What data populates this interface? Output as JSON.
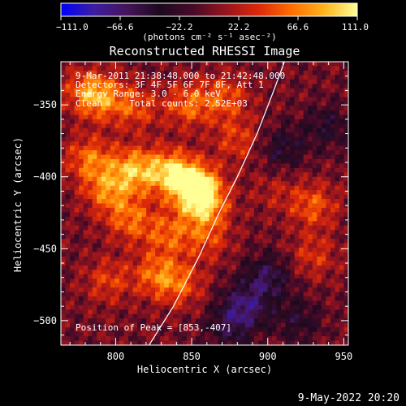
{
  "chart_data": {
    "type": "heatmap",
    "title": "Reconstructed RHESSI Image",
    "xlabel": "Heliocentric X (arcsec)",
    "ylabel": "Heliocentric Y (arcsec)",
    "xlim": [
      764,
      953
    ],
    "ylim": [
      -517,
      -320
    ],
    "xticks": [
      800,
      850,
      900,
      950
    ],
    "yticks": [
      -350,
      -400,
      -450,
      -500
    ],
    "colorbar": {
      "min": -111.0,
      "max": 111.0,
      "tick_labels": [
        "−111.0",
        "−66.6",
        "−22.2",
        "22.2",
        "66.6",
        "111.0"
      ],
      "tick_values": [
        -111.0,
        -66.6,
        -22.2,
        22.2,
        66.6,
        111.0
      ],
      "unit_label": "(photons cm⁻² s⁻¹ asec⁻²)",
      "colormap": [
        "#0000ff",
        "#3c1ea0",
        "#46145a",
        "#1c0a1e",
        "#460a28",
        "#96141e",
        "#dc280a",
        "#ff6e00",
        "#ffb41e",
        "#ffff96"
      ]
    },
    "annotations": [
      "9-Mar-2011 21:38:48.000 to 21:42:48.000",
      "Detectors: 3F 4F 5F 6F 7F 8F, Att 1",
      "Energy Range: 3.0 - 6.0 keV",
      "Clean     Total counts: 2.52E+03"
    ],
    "peak": {
      "label": "Position of Peak = [853,-407]",
      "x": 853,
      "y": -407,
      "value": 111.0
    },
    "sources": [
      {
        "x": 853,
        "y": -407,
        "value": 111
      },
      {
        "x": 836,
        "y": -397,
        "value": 88
      },
      {
        "x": 858,
        "y": -420,
        "value": 70
      },
      {
        "x": 812,
        "y": -395,
        "value": 78
      },
      {
        "x": 783,
        "y": -388,
        "value": 60
      },
      {
        "x": 795,
        "y": -410,
        "value": 62
      },
      {
        "x": 810,
        "y": -430,
        "value": 55
      },
      {
        "x": 835,
        "y": -440,
        "value": 50
      },
      {
        "x": 860,
        "y": -443,
        "value": 40
      },
      {
        "x": 827,
        "y": -468,
        "value": 55
      },
      {
        "x": 843,
        "y": -475,
        "value": 45
      },
      {
        "x": 795,
        "y": -472,
        "value": 40
      },
      {
        "x": 790,
        "y": -345,
        "value": 62
      },
      {
        "x": 813,
        "y": -352,
        "value": 45
      },
      {
        "x": 848,
        "y": -350,
        "value": 55
      },
      {
        "x": 872,
        "y": -345,
        "value": 48
      },
      {
        "x": 780,
        "y": -340,
        "value": 40
      },
      {
        "x": 880,
        "y": -374,
        "value": 40
      },
      {
        "x": 930,
        "y": -420,
        "value": 50
      },
      {
        "x": 930,
        "y": -455,
        "value": 35
      },
      {
        "x": 905,
        "y": -410,
        "value": 20
      },
      {
        "x": 900,
        "y": -470,
        "value": -55
      },
      {
        "x": 885,
        "y": -490,
        "value": -60
      },
      {
        "x": 910,
        "y": -380,
        "value": -40
      },
      {
        "x": 940,
        "y": -365,
        "value": -35
      },
      {
        "x": 875,
        "y": -505,
        "value": -40
      },
      {
        "x": 920,
        "y": -500,
        "value": -35
      }
    ],
    "limb": {
      "color": "#ffffff",
      "points": [
        [
          822,
          -517
        ],
        [
          838,
          -490
        ],
        [
          855,
          -455
        ],
        [
          868,
          -425
        ],
        [
          880,
          -400
        ],
        [
          893,
          -370
        ],
        [
          904,
          -340
        ],
        [
          911,
          -320
        ]
      ]
    }
  },
  "footer": {
    "date_stamp": "9-May-2022 20:20"
  }
}
